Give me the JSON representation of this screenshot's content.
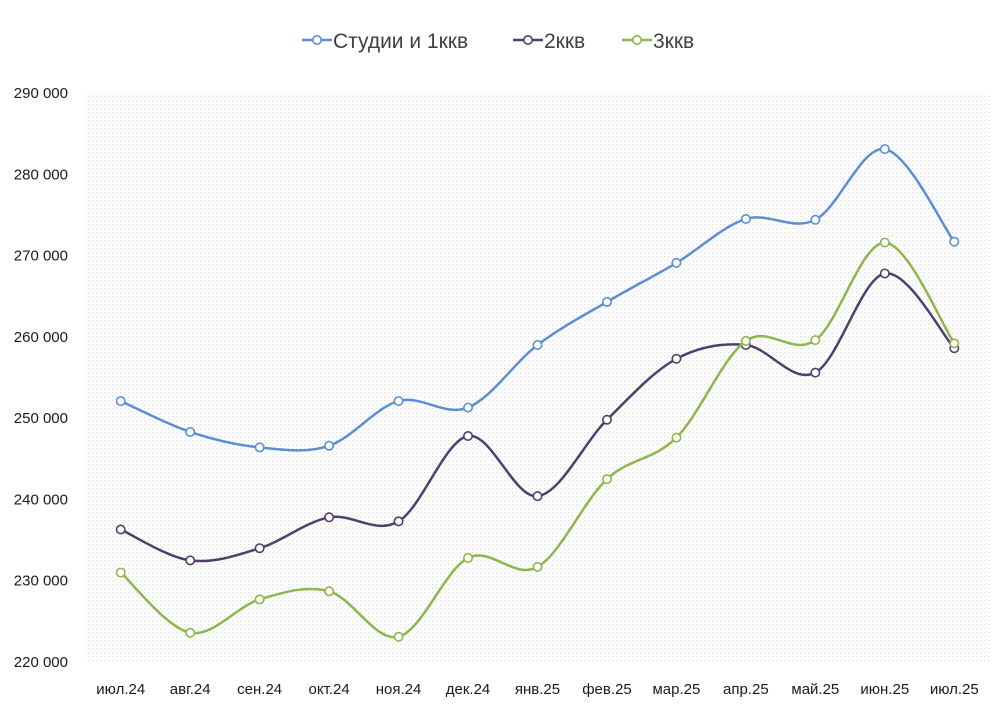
{
  "chart_data": {
    "type": "line",
    "title": "",
    "xlabel": "",
    "ylabel": "",
    "categories": [
      "июл.24",
      "авг.24",
      "сен.24",
      "окт.24",
      "ноя.24",
      "дек.24",
      "янв.25",
      "фев.25",
      "мар.25",
      "апр.25",
      "май.25",
      "июн.25",
      "июл.25"
    ],
    "ylim": [
      220000,
      290000
    ],
    "yticks": [
      220000,
      230000,
      240000,
      250000,
      260000,
      270000,
      280000,
      290000
    ],
    "ytick_labels": [
      "220 000",
      "230 000",
      "240 000",
      "250 000",
      "260 000",
      "270 000",
      "280 000",
      "290 000"
    ],
    "legend_position": "top",
    "grid": false,
    "smooth": true,
    "series": [
      {
        "name": "Студии и 1ккв",
        "color": "#5b8fd1",
        "values": [
          252100,
          248300,
          246400,
          246600,
          252100,
          251300,
          259000,
          264300,
          269100,
          274500,
          274400,
          283100,
          271700
        ]
      },
      {
        "name": "2ккв",
        "color": "#503f6c",
        "values": [
          236300,
          232500,
          234000,
          237800,
          237300,
          247800,
          240400,
          249800,
          257300,
          259000,
          255600,
          267800,
          258600
        ]
      },
      {
        "name": "3ккв",
        "color": "#8fb54d",
        "values": [
          231000,
          223600,
          227700,
          228700,
          223100,
          232800,
          231700,
          242500,
          247600,
          259500,
          259600,
          271600,
          259200
        ]
      }
    ]
  }
}
